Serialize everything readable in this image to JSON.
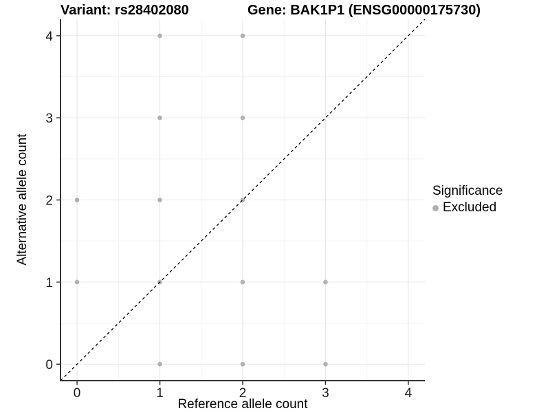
{
  "chart_data": {
    "type": "scatter",
    "title_left": "Variant: rs28402080",
    "title_right": "Gene: BAK1P1 (ENSG00000175730)",
    "xlabel": "Reference allele count",
    "ylabel": "Alternative allele count",
    "xlim": [
      -0.2,
      4.2
    ],
    "ylim": [
      -0.2,
      4.2
    ],
    "xticks": [
      0,
      1,
      2,
      3,
      4
    ],
    "yticks": [
      0,
      1,
      2,
      3,
      4
    ],
    "minor_gridlines": [
      0.5,
      1.5,
      2.5,
      3.5
    ],
    "grid": "major and minor on, white panel background",
    "series": [
      {
        "name": "Excluded",
        "color": "#b0b0b0",
        "points": [
          [
            0,
            1
          ],
          [
            0,
            2
          ],
          [
            1,
            0
          ],
          [
            1,
            1
          ],
          [
            1,
            2
          ],
          [
            1,
            3
          ],
          [
            1,
            4
          ],
          [
            2,
            0
          ],
          [
            2,
            1
          ],
          [
            2,
            2
          ],
          [
            2,
            3
          ],
          [
            2,
            4
          ],
          [
            3,
            0
          ],
          [
            3,
            1
          ]
        ]
      }
    ],
    "reference_line": {
      "type": "identity",
      "equation": "y = x",
      "style": "dashed",
      "color": "#000000"
    },
    "legend": {
      "position": "right",
      "title": "Significance",
      "entries": [
        {
          "label": "Excluded",
          "marker": "dot",
          "color": "#b0b0b0"
        }
      ]
    },
    "colors": {
      "background": "#ffffff",
      "grid_major": "#e5e5e5",
      "grid_minor": "#f2f2f2",
      "axis": "#333333",
      "tick_text": "#1a1a1a"
    }
  }
}
